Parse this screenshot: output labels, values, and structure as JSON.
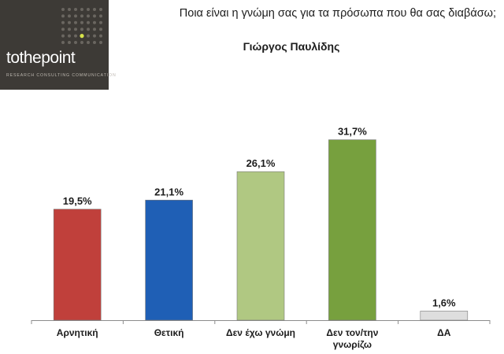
{
  "header": {
    "question": "Ποια είναι η γνώμη σας για τα πρόσωπα που θα σας διαβάσω;"
  },
  "logo": {
    "name_part1": "to",
    "name_part2": "the",
    "name_part3": "point",
    "tagline": "RESEARCH  CONSULTING  COMMUNICATION",
    "icon": "dot-grid-icon",
    "background_color": "#3d3a36",
    "accent_color": "#d6e24a"
  },
  "chart_data": {
    "type": "bar",
    "title": "Γιώργος Παυλίδης",
    "categories": [
      "Αρνητική",
      "Θετική",
      "Δεν έχω γνώμη",
      "Δεν τον/την γνωρίζω",
      "ΔΑ"
    ],
    "category_lines": [
      [
        "Αρνητική"
      ],
      [
        "Θετική"
      ],
      [
        "Δεν έχω γνώμη"
      ],
      [
        "Δεν τον/την",
        "γνωρίζω"
      ],
      [
        "ΔΑ"
      ]
    ],
    "values": [
      19.5,
      21.1,
      26.1,
      31.7,
      1.6
    ],
    "data_labels": [
      "19,5%",
      "21,1%",
      "26,1%",
      "31,7%",
      "1,6%"
    ],
    "colors": [
      "#c0403b",
      "#1f5fb5",
      "#b0c882",
      "#77a03e",
      "#dedede"
    ],
    "ylim": [
      0,
      34
    ],
    "grid": false,
    "legend": "none",
    "xlabel": "",
    "ylabel": ""
  }
}
